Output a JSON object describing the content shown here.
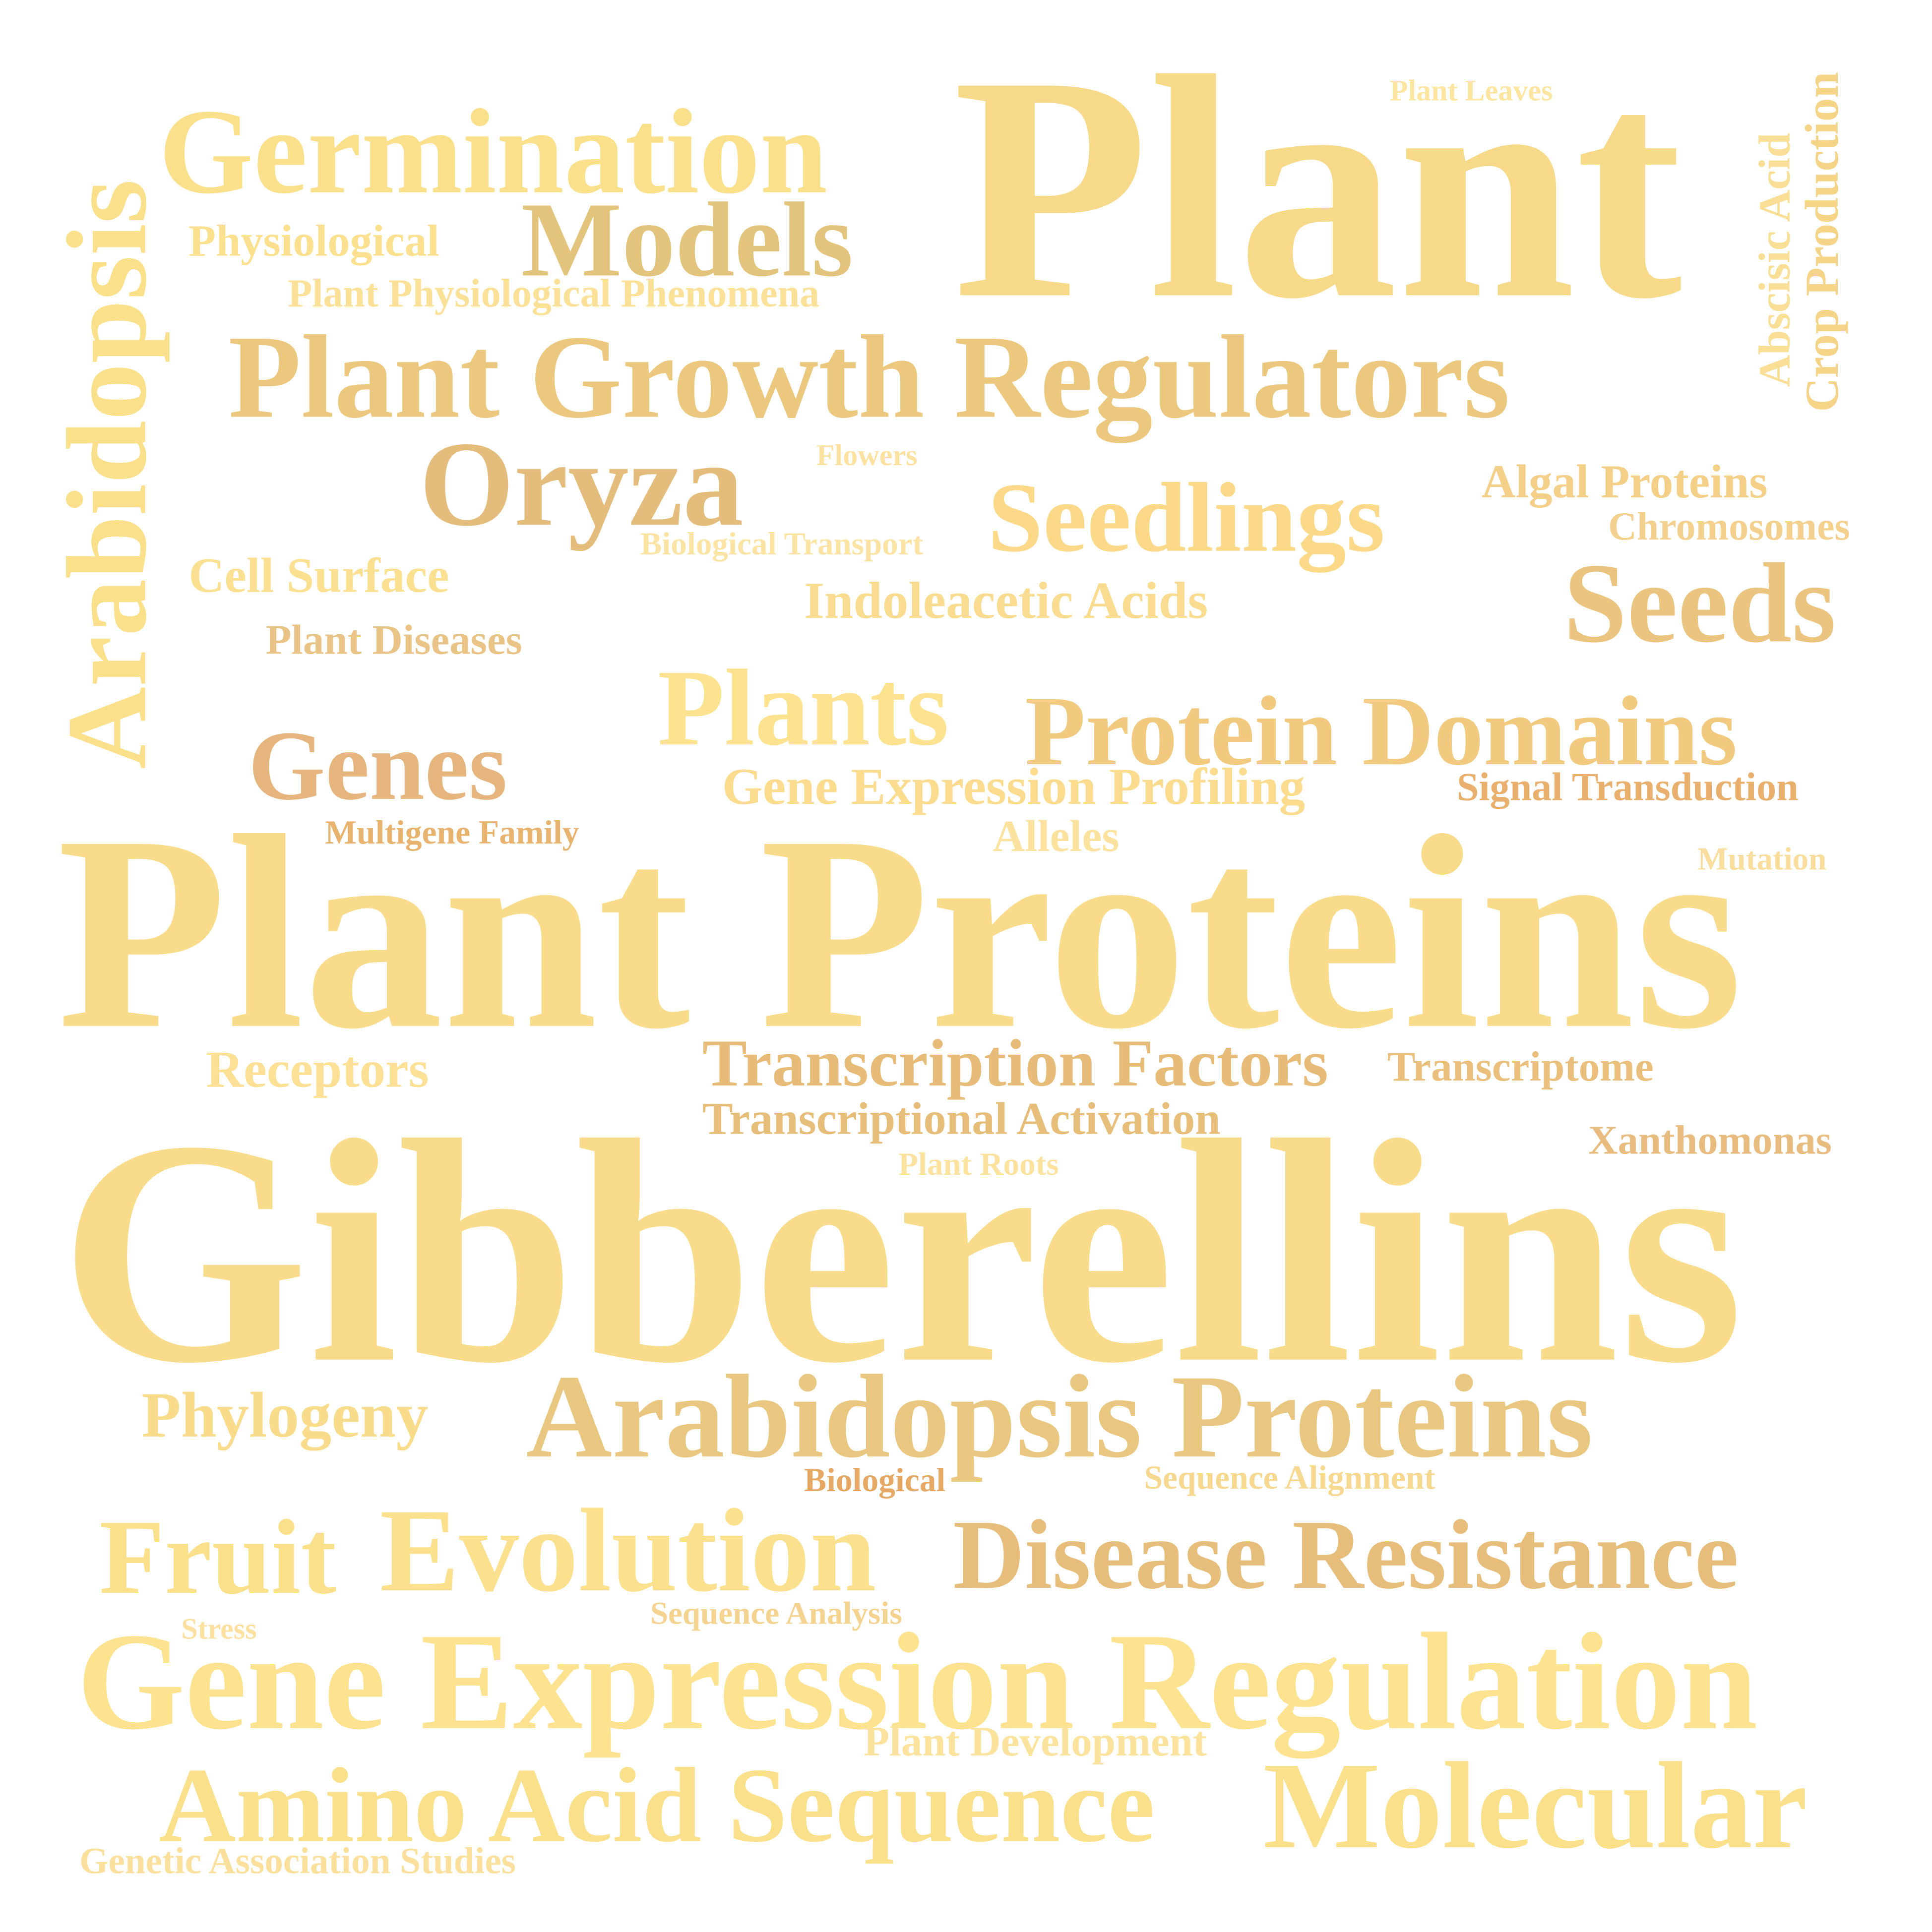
{
  "palette": {
    "light": "#fde68f",
    "mid": "#f7d88a",
    "warm": "#f0cf85",
    "tan": "#e8c584",
    "dark": "#e4b574",
    "orange": "#e7a862"
  },
  "words": [
    {
      "id": "plant",
      "text": "Plant",
      "color": "#f7d98a"
    },
    {
      "id": "plant-proteins",
      "text": "Plant Proteins",
      "color": "#f9dc8b"
    },
    {
      "id": "gibberellins",
      "text": "Gibberellins",
      "color": "#f8dc8b"
    },
    {
      "id": "germination",
      "text": "Germination",
      "color": "#fbe08c"
    },
    {
      "id": "models",
      "text": "Models",
      "color": "#e3c47d"
    },
    {
      "id": "arabidopsis",
      "text": "Arabidopsis",
      "color": "#fbe08c"
    },
    {
      "id": "plant-leaves",
      "text": "Plant Leaves",
      "color": "#fbe5a0"
    },
    {
      "id": "abscisic-acid",
      "text": "Abscisic Acid",
      "color": "#f9df96"
    },
    {
      "id": "crop-production",
      "text": "Crop Production",
      "color": "#f5d488"
    },
    {
      "id": "physiological",
      "text": "Physiological",
      "color": "#fbe08f"
    },
    {
      "id": "plant-physiological-phenomena",
      "text": "Plant Physiological Phenomena",
      "color": "#fbe098"
    },
    {
      "id": "plant-growth-regulators",
      "text": "Plant Growth Regulators",
      "color": "#ecc87f"
    },
    {
      "id": "oryza",
      "text": "Oryza",
      "color": "#e4bd7c"
    },
    {
      "id": "flowers",
      "text": "Flowers",
      "color": "#fbe2a0"
    },
    {
      "id": "seedlings",
      "text": "Seedlings",
      "color": "#fbd988"
    },
    {
      "id": "algal-proteins",
      "text": "Algal Proteins",
      "color": "#f3cf87"
    },
    {
      "id": "chromosomes",
      "text": "Chromosomes",
      "color": "#f3d08d"
    },
    {
      "id": "biological-transport",
      "text": "Biological Transport",
      "color": "#fbe3a3"
    },
    {
      "id": "cell-surface",
      "text": "Cell Surface",
      "color": "#fbe092"
    },
    {
      "id": "indoleacetic-acids",
      "text": "Indoleacetic Acids",
      "color": "#f9dc8f"
    },
    {
      "id": "seeds",
      "text": "Seeds",
      "color": "#ebc47f"
    },
    {
      "id": "plant-diseases",
      "text": "Plant Diseases",
      "color": "#e9c486"
    },
    {
      "id": "plants",
      "text": "Plants",
      "color": "#fde38f"
    },
    {
      "id": "protein-domains",
      "text": "Protein Domains",
      "color": "#f1ca80"
    },
    {
      "id": "genes",
      "text": "Genes",
      "color": "#e5b57d"
    },
    {
      "id": "gene-expression-profiling",
      "text": "Gene Expression Profiling",
      "color": "#fbdb8e"
    },
    {
      "id": "signal-transduction",
      "text": "Signal Transduction",
      "color": "#e8b06c"
    },
    {
      "id": "multigene-family",
      "text": "Multigene Family",
      "color": "#e8b26f"
    },
    {
      "id": "alleles",
      "text": "Alleles",
      "color": "#fbe39f"
    },
    {
      "id": "mutation",
      "text": "Mutation",
      "color": "#f9dd9d"
    },
    {
      "id": "receptors",
      "text": "Receptors",
      "color": "#fbe095"
    },
    {
      "id": "transcription-factors",
      "text": "Transcription Factors",
      "color": "#e7bb78"
    },
    {
      "id": "transcriptome",
      "text": "Transcriptome",
      "color": "#eabf7b"
    },
    {
      "id": "transcriptional-activation",
      "text": "Transcriptional Activation",
      "color": "#e7be79"
    },
    {
      "id": "xanthomonas",
      "text": "Xanthomonas",
      "color": "#e8bb7e"
    },
    {
      "id": "plant-roots",
      "text": "Plant Roots",
      "color": "#fbe39f"
    },
    {
      "id": "phylogeny",
      "text": "Phylogeny",
      "color": "#f9dc8b"
    },
    {
      "id": "arabidopsis-proteins",
      "text": "Arabidopsis Proteins",
      "color": "#eac780"
    },
    {
      "id": "biological",
      "text": "Biological",
      "color": "#e6a965"
    },
    {
      "id": "sequence-alignment",
      "text": "Sequence Alignment",
      "color": "#f7d891"
    },
    {
      "id": "fruit",
      "text": "Fruit",
      "color": "#fbe08c"
    },
    {
      "id": "evolution",
      "text": "Evolution",
      "color": "#fbe18e"
    },
    {
      "id": "disease-resistance",
      "text": "Disease Resistance",
      "color": "#e7bd7c"
    },
    {
      "id": "stress",
      "text": "Stress",
      "color": "#fbe09f"
    },
    {
      "id": "sequence-analysis",
      "text": "Sequence Analysis",
      "color": "#f4d290"
    },
    {
      "id": "gene-expression-regulation",
      "text": "Gene Expression Regulation",
      "color": "#fde28f"
    },
    {
      "id": "plant-development",
      "text": "Plant Development",
      "color": "#fbe39d"
    },
    {
      "id": "amino-acid-sequence",
      "text": "Amino Acid Sequence",
      "color": "#fbe08c"
    },
    {
      "id": "molecular",
      "text": "Molecular",
      "color": "#fbe08c"
    },
    {
      "id": "genetic-association-studies",
      "text": "Genetic Association Studies",
      "color": "#fbe09d"
    }
  ]
}
